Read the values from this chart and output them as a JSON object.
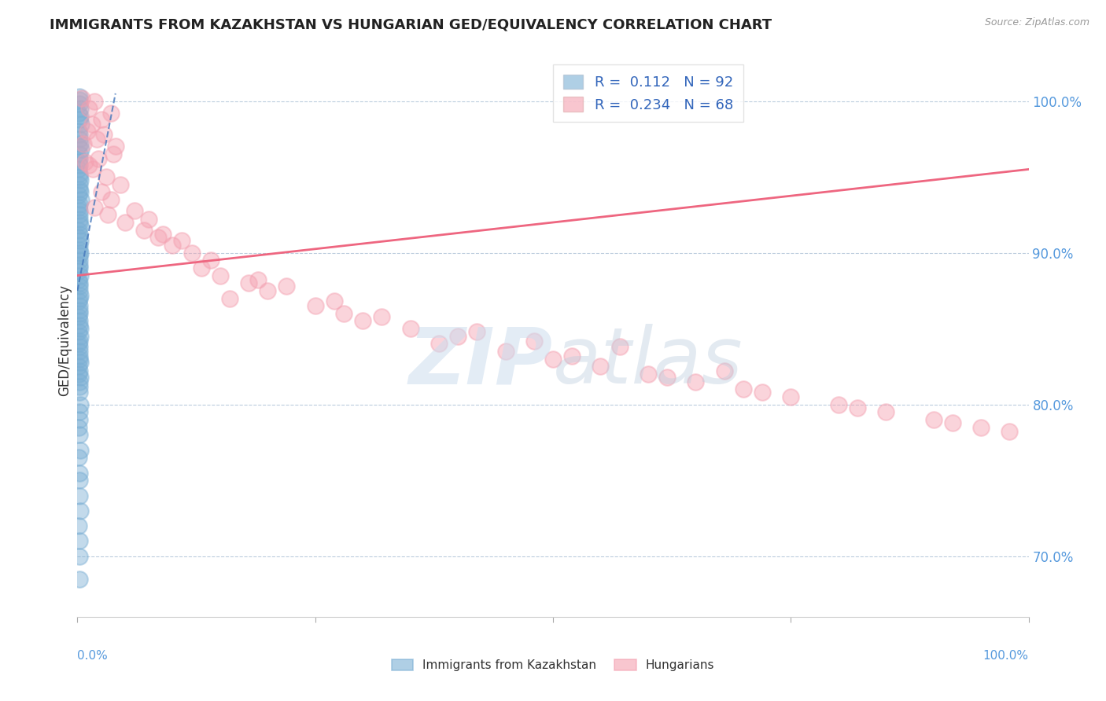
{
  "title": "IMMIGRANTS FROM KAZAKHSTAN VS HUNGARIAN GED/EQUIVALENCY CORRELATION CHART",
  "source": "Source: ZipAtlas.com",
  "ylabel": "GED/Equivalency",
  "legend1_label": "Immigrants from Kazakhstan",
  "legend2_label": "Hungarians",
  "R1": 0.112,
  "N1": 92,
  "R2": 0.234,
  "N2": 68,
  "blue_color": "#7BAFD4",
  "pink_color": "#F4A0B0",
  "blue_line_color": "#4477BB",
  "pink_line_color": "#EE6680",
  "xmin": 0.0,
  "xmax": 100.0,
  "ymin": 66.0,
  "ymax": 102.5,
  "blue_x": [
    0.18,
    0.22,
    0.25,
    0.3,
    0.15,
    0.2,
    0.28,
    0.35,
    0.12,
    0.18,
    0.22,
    0.3,
    0.4,
    0.15,
    0.25,
    0.18,
    0.2,
    0.12,
    0.16,
    0.24,
    0.3,
    0.2,
    0.18,
    0.22,
    0.15,
    0.28,
    0.35,
    0.18,
    0.22,
    0.16,
    0.2,
    0.25,
    0.3,
    0.18,
    0.15,
    0.22,
    0.28,
    0.12,
    0.18,
    0.2,
    0.25,
    0.3,
    0.18,
    0.22,
    0.15,
    0.2,
    0.28,
    0.16,
    0.24,
    0.18,
    0.22,
    0.3,
    0.15,
    0.2,
    0.18,
    0.25,
    0.12,
    0.2,
    0.18,
    0.22,
    0.15,
    0.28,
    0.3,
    0.18,
    0.22,
    0.16,
    0.2,
    0.25,
    0.3,
    0.18,
    0.15,
    0.22,
    0.28,
    0.12,
    0.18,
    0.2,
    0.25,
    0.3,
    0.18,
    0.22,
    0.15,
    0.2,
    0.28,
    0.16,
    0.24,
    0.18,
    0.22,
    0.3,
    0.15,
    0.2,
    0.18,
    0.25
  ],
  "blue_y": [
    100.3,
    99.8,
    100.1,
    99.5,
    99.2,
    98.8,
    99.0,
    98.5,
    98.0,
    97.8,
    97.5,
    97.2,
    96.8,
    97.0,
    96.5,
    96.2,
    95.8,
    96.0,
    95.5,
    95.2,
    94.8,
    95.0,
    94.5,
    94.2,
    93.8,
    94.0,
    93.5,
    93.2,
    92.8,
    93.0,
    92.5,
    92.2,
    91.8,
    92.0,
    91.5,
    91.2,
    90.8,
    91.0,
    90.5,
    90.2,
    89.8,
    90.0,
    89.5,
    89.2,
    88.8,
    89.0,
    88.5,
    88.2,
    87.8,
    88.0,
    87.5,
    87.2,
    86.8,
    87.0,
    86.5,
    86.2,
    85.8,
    86.0,
    85.5,
    85.2,
    84.8,
    85.0,
    84.5,
    84.2,
    83.8,
    84.0,
    83.5,
    83.2,
    82.8,
    83.0,
    82.5,
    82.2,
    81.8,
    82.0,
    81.5,
    81.2,
    80.8,
    80.0,
    79.5,
    79.0,
    78.5,
    78.0,
    77.0,
    76.5,
    75.5,
    75.0,
    74.0,
    73.0,
    72.0,
    71.0,
    70.0,
    68.5
  ],
  "pink_x": [
    0.5,
    1.2,
    1.8,
    2.5,
    3.5,
    1.0,
    2.0,
    4.0,
    1.5,
    2.8,
    3.8,
    0.8,
    1.6,
    2.2,
    3.0,
    4.5,
    1.2,
    2.5,
    3.5,
    0.6,
    1.8,
    3.2,
    5.0,
    7.0,
    6.0,
    8.5,
    10.0,
    12.0,
    14.0,
    9.0,
    11.0,
    15.0,
    18.0,
    7.5,
    13.0,
    20.0,
    16.0,
    22.0,
    25.0,
    19.0,
    28.0,
    30.0,
    35.0,
    27.0,
    32.0,
    40.0,
    38.0,
    45.0,
    50.0,
    42.0,
    55.0,
    48.0,
    60.0,
    57.0,
    65.0,
    70.0,
    52.0,
    75.0,
    80.0,
    68.0,
    85.0,
    90.0,
    95.0,
    62.0,
    72.0,
    82.0,
    92.0,
    98.0
  ],
  "pink_y": [
    100.2,
    99.5,
    100.0,
    98.8,
    99.2,
    98.0,
    97.5,
    97.0,
    98.5,
    97.8,
    96.5,
    96.0,
    95.5,
    96.2,
    95.0,
    94.5,
    95.8,
    94.0,
    93.5,
    97.2,
    93.0,
    92.5,
    92.0,
    91.5,
    92.8,
    91.0,
    90.5,
    90.0,
    89.5,
    91.2,
    90.8,
    88.5,
    88.0,
    92.2,
    89.0,
    87.5,
    87.0,
    87.8,
    86.5,
    88.2,
    86.0,
    85.5,
    85.0,
    86.8,
    85.8,
    84.5,
    84.0,
    83.5,
    83.0,
    84.8,
    82.5,
    84.2,
    82.0,
    83.8,
    81.5,
    81.0,
    83.2,
    80.5,
    80.0,
    82.2,
    79.5,
    79.0,
    78.5,
    81.8,
    80.8,
    79.8,
    78.8,
    78.2
  ],
  "blue_line_x0": 0.0,
  "blue_line_x1": 4.0,
  "blue_line_y0": 87.5,
  "blue_line_y1": 100.5,
  "pink_line_x0": 0.0,
  "pink_line_x1": 100.0,
  "pink_line_y0": 88.5,
  "pink_line_y1": 95.5
}
